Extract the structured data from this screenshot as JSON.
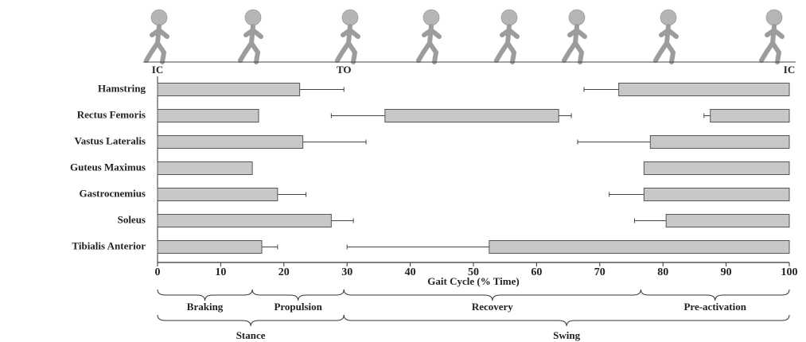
{
  "chart_data": {
    "type": "floating_bar",
    "x_label": "Gait Cycle (% Time)",
    "xlim": [
      0,
      100
    ],
    "xticks": [
      0,
      10,
      20,
      30,
      40,
      50,
      60,
      70,
      80,
      90,
      100
    ],
    "color": "#c8c8c8",
    "edge_color": "#555555",
    "markers": [
      {
        "label": "IC",
        "x": 0
      },
      {
        "label": "TO",
        "x": 29.5
      },
      {
        "label": "IC",
        "x": 100
      }
    ],
    "series": [
      {
        "name": "Hamstring",
        "bars": [
          {
            "start": 0,
            "end": 22.5,
            "err_high": 29.5
          },
          {
            "start": 73,
            "end": 100,
            "err_low": 67.5
          }
        ]
      },
      {
        "name": "Rectus Femoris",
        "bars": [
          {
            "start": 0,
            "end": 16
          },
          {
            "start": 36,
            "end": 63.5,
            "err_low": 27.5,
            "err_high": 65.5
          },
          {
            "start": 87.5,
            "end": 100,
            "err_low": 86.5
          }
        ]
      },
      {
        "name": "Vastus Lateralis",
        "bars": [
          {
            "start": 0,
            "end": 23,
            "err_high": 33
          },
          {
            "start": 78,
            "end": 100,
            "err_low": 66.5
          }
        ]
      },
      {
        "name": "Guteus Maximus",
        "bars": [
          {
            "start": 0,
            "end": 15
          },
          {
            "start": 77,
            "end": 100
          }
        ]
      },
      {
        "name": "Gastrocnemius",
        "bars": [
          {
            "start": 0,
            "end": 19,
            "err_high": 23.5
          },
          {
            "start": 77,
            "end": 100,
            "err_low": 71.5
          }
        ]
      },
      {
        "name": "Soleus",
        "bars": [
          {
            "start": 0,
            "end": 27.5,
            "err_high": 31
          },
          {
            "start": 80.5,
            "end": 100,
            "err_low": 75.5
          }
        ]
      },
      {
        "name": "Tibialis Anterior",
        "bars": [
          {
            "start": 0,
            "end": 16.5,
            "err_high": 19
          },
          {
            "start": 52.5,
            "end": 100,
            "err_low": 30
          }
        ]
      }
    ],
    "phases": [
      {
        "label": "Braking",
        "start": 0,
        "end": 15
      },
      {
        "label": "Propulsion",
        "start": 15,
        "end": 29.5
      },
      {
        "label": "Recovery",
        "start": 29.5,
        "end": 76.5
      },
      {
        "label": "Pre-activation",
        "start": 76.5,
        "end": 100
      }
    ],
    "periods": [
      {
        "label": "Stance",
        "start": 0,
        "end": 29.5
      },
      {
        "label": "Swing",
        "start": 29.5,
        "end": 100
      }
    ]
  }
}
